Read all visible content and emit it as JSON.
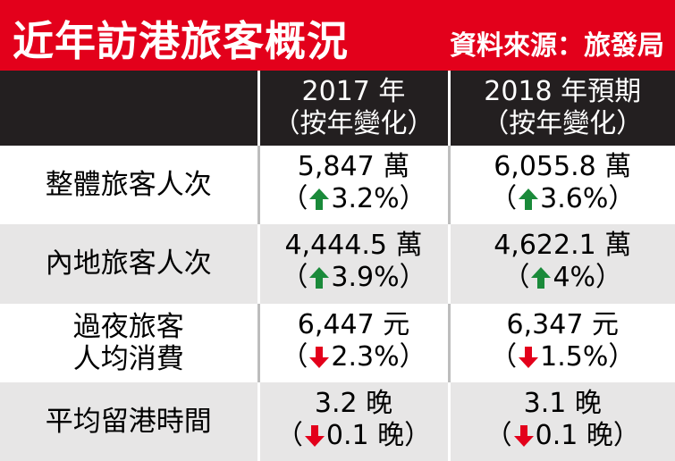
{
  "header": {
    "title": "近年訪港旅客概況",
    "source": "資料來源：旅發局"
  },
  "colors": {
    "title_bg": "#e3001b",
    "header_bg": "#231f20",
    "up": "#1a8a3a",
    "down": "#e3001b"
  },
  "table": {
    "columns": [
      {
        "line1": "",
        "line2": ""
      },
      {
        "line1": "2017 年",
        "line2": "（按年變化）"
      },
      {
        "line1": "2018 年預期",
        "line2": "（按年變化）"
      }
    ],
    "rows": [
      {
        "label": [
          "整體旅客人次"
        ],
        "y2017": {
          "value": "5,847 萬",
          "dir": "up-arrow-icon",
          "change": "3.2%"
        },
        "y2018": {
          "value": "6,055.8 萬",
          "dir": "up-arrow-icon",
          "change": "3.6%"
        }
      },
      {
        "label": [
          "內地旅客人次"
        ],
        "y2017": {
          "value": "4,444.5 萬",
          "dir": "up-arrow-icon",
          "change": "3.9%"
        },
        "y2018": {
          "value": "4,622.1 萬",
          "dir": "up-arrow-icon",
          "change": "4%"
        }
      },
      {
        "label": [
          "過夜旅客",
          "人均消費"
        ],
        "y2017": {
          "value": "6,447 元",
          "dir": "down-arrow-icon",
          "change": "2.3%"
        },
        "y2018": {
          "value": "6,347 元",
          "dir": "down-arrow-icon",
          "change": "1.5%"
        }
      },
      {
        "label": [
          "平均留港時間"
        ],
        "y2017": {
          "value": "3.2 晚",
          "dir": "down-arrow-icon",
          "change": "0.1 晚"
        },
        "y2018": {
          "value": "3.1 晚",
          "dir": "down-arrow-icon",
          "change": "0.1 晚"
        }
      }
    ]
  }
}
